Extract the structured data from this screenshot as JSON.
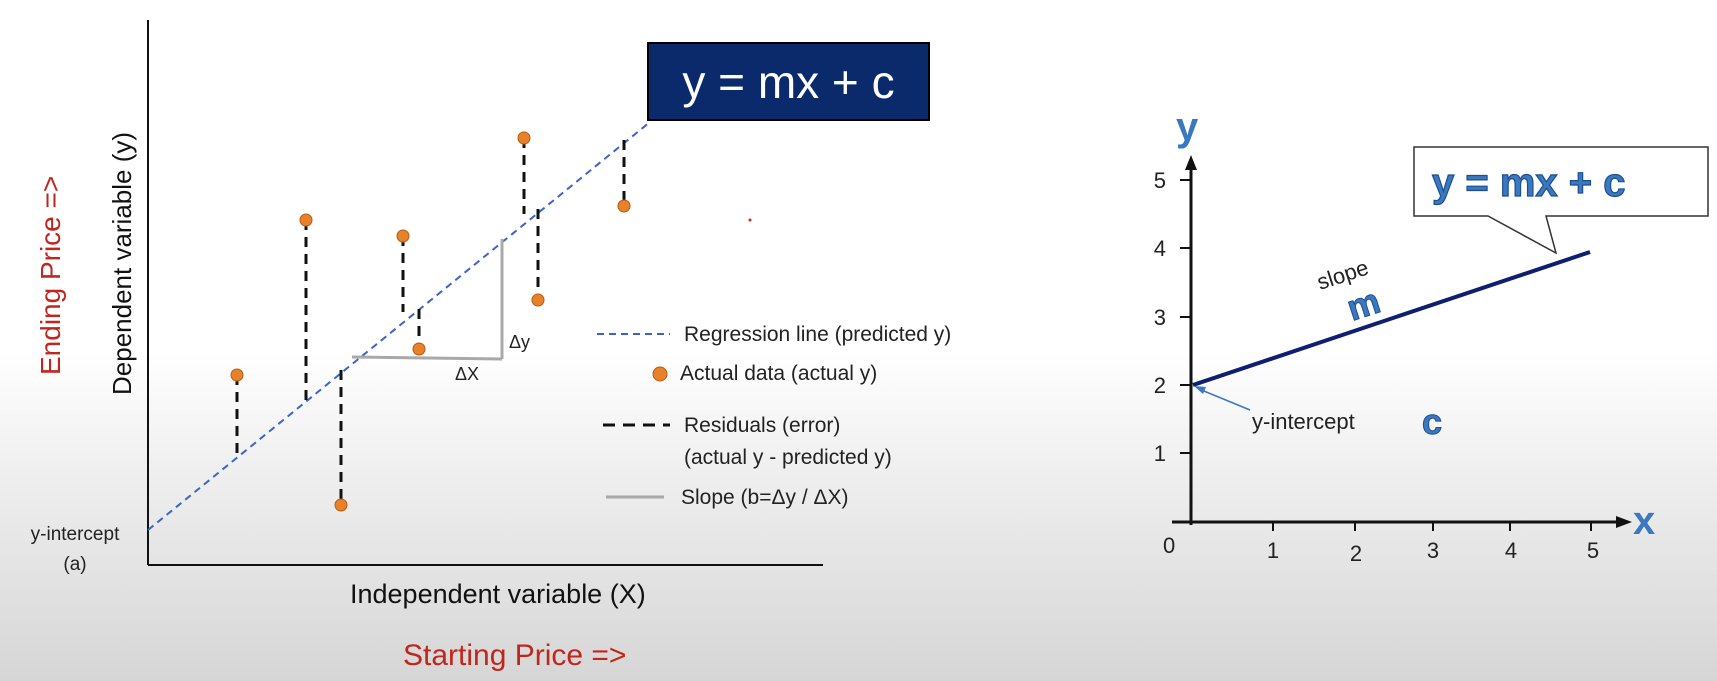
{
  "left_figure": {
    "equation_box": "y = mx + c",
    "y_axis_label": "Dependent variable (y)",
    "x_axis_label": "Independent variable (X)",
    "outer_y_label": "Ending Price =>",
    "outer_x_label": "Starting Price =>",
    "intercept_label_line1": "y-intercept",
    "intercept_label_line2": "(a)",
    "delta_y_label": "Δy",
    "delta_x_label": "ΔX",
    "legend": {
      "regression": "Regression line (predicted y)",
      "actual": "Actual data (actual y)",
      "residuals_line1": "Residuals (error)",
      "residuals_line2": "(actual y - predicted y)",
      "slope": "Slope (b=Δy / ΔX)"
    },
    "colors": {
      "regression_line": "#3b63c8",
      "data_point": "#e8822a",
      "residual": "#111111",
      "slope_triangle": "#a9a9a9",
      "outer_labels": "#c0261d",
      "equation_box_bg": "#0a2a6b"
    }
  },
  "right_figure": {
    "y_axis_letter": "y",
    "x_axis_letter": "x",
    "origin_label": "0",
    "y_ticks": [
      "1",
      "2",
      "3",
      "4",
      "5"
    ],
    "x_ticks": [
      "1",
      "2",
      "3",
      "4",
      "5"
    ],
    "callout_equation": "y = mx + c",
    "slope_label": "slope",
    "slope_symbol": "m",
    "intercept_label": "y-intercept",
    "intercept_symbol": "c",
    "line_points": [
      {
        "x": 0,
        "y": 2
      },
      {
        "x": 5,
        "y": 4
      }
    ],
    "colors": {
      "axis_letters": "#3a78c0",
      "line": "#0d1f6e",
      "symbols": "#3a78c0"
    }
  }
}
